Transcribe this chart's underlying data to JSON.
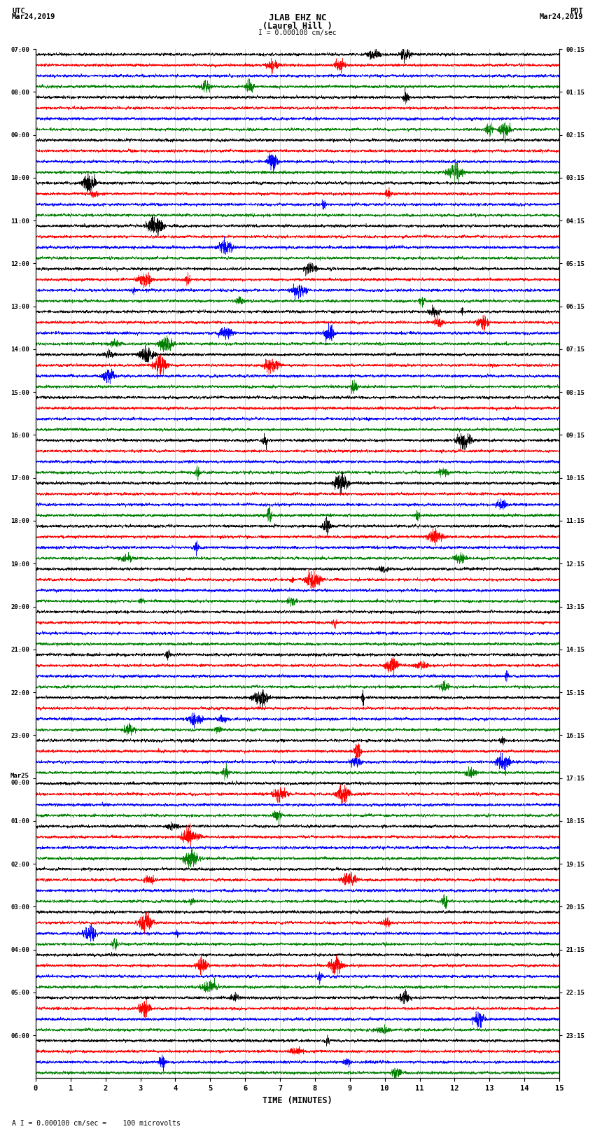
{
  "title_line1": "JLAB EHZ NC",
  "title_line2": "(Laurel Hill )",
  "scale_label": "I = 0.000100 cm/sec",
  "utc_label": "UTC\nMar24,2019",
  "pdt_label": "PDT\nMar24,2019",
  "xlabel": "TIME (MINUTES)",
  "footnote": "A I = 0.000100 cm/sec =    100 microvolts",
  "left_times": [
    "07:00",
    "08:00",
    "09:00",
    "10:00",
    "11:00",
    "12:00",
    "13:00",
    "14:00",
    "15:00",
    "16:00",
    "17:00",
    "18:00",
    "19:00",
    "20:00",
    "21:00",
    "22:00",
    "23:00",
    "Mar25\n00:00",
    "01:00",
    "02:00",
    "03:00",
    "04:00",
    "05:00",
    "06:00"
  ],
  "right_times": [
    "00:15",
    "01:15",
    "02:15",
    "03:15",
    "04:15",
    "05:15",
    "06:15",
    "07:15",
    "08:15",
    "09:15",
    "10:15",
    "11:15",
    "12:15",
    "13:15",
    "14:15",
    "15:15",
    "16:15",
    "17:15",
    "18:15",
    "19:15",
    "20:15",
    "21:15",
    "22:15",
    "23:15"
  ],
  "colors": [
    "black",
    "red",
    "blue",
    "green"
  ],
  "background_color": "white",
  "num_rows": 24,
  "traces_per_row": 4,
  "xmin": 0,
  "xmax": 15,
  "xticks": [
    0,
    1,
    2,
    3,
    4,
    5,
    6,
    7,
    8,
    9,
    10,
    11,
    12,
    13,
    14,
    15
  ],
  "noise_amplitude": 0.028,
  "seed": 42
}
